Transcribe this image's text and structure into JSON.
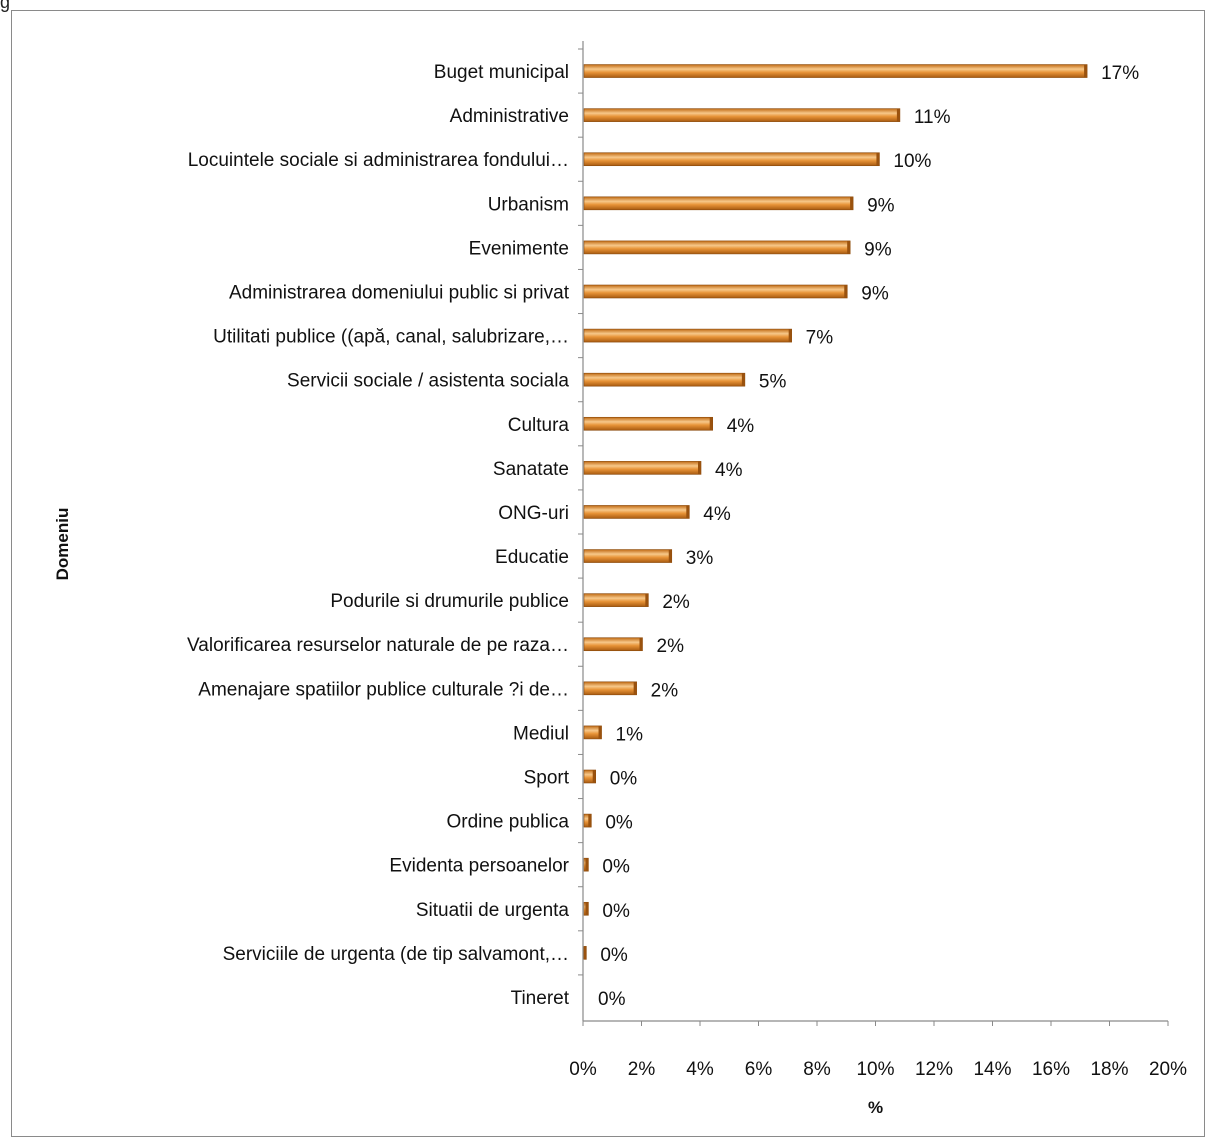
{
  "top_fragment": "g",
  "chart_data": {
    "type": "bar",
    "orientation": "horizontal",
    "title": "",
    "ylabel": "Domeniu",
    "xlabel": "%",
    "xlim": [
      0,
      20
    ],
    "x_ticks": [
      "0%",
      "2%",
      "4%",
      "6%",
      "8%",
      "10%",
      "12%",
      "14%",
      "16%",
      "18%",
      "20%"
    ],
    "grid": false,
    "legend": "none",
    "bar_color": "#e08a25",
    "bar_highlight": "#f7c88a",
    "categories": [
      "Buget municipal",
      "Administrative",
      "Locuintele sociale si administrarea fondului…",
      "Urbanism",
      "Evenimente",
      "Administrarea domeniului public si privat",
      "Utilitati publice ((apă, canal, salubrizare,…",
      "Servicii sociale / asistenta sociala",
      "Cultura",
      "Sanatate",
      "ONG-uri",
      "Educatie",
      "Podurile si drumurile publice",
      "Valorificarea resurselor naturale de pe raza…",
      "Amenajare spatiilor publice culturale ?i de…",
      "Mediul",
      "Sport",
      "Ordine publica",
      "Evidenta persoanelor",
      "Situatii de urgenta",
      "Serviciile de urgenta (de tip salvamont,…",
      "Tineret"
    ],
    "values": [
      17.2,
      10.8,
      10.1,
      9.2,
      9.1,
      9.0,
      7.1,
      5.5,
      4.4,
      4.0,
      3.6,
      3.0,
      2.2,
      2.0,
      1.8,
      0.6,
      0.4,
      0.25,
      0.15,
      0.15,
      0.08,
      0.0
    ],
    "value_labels": [
      "17%",
      "11%",
      "10%",
      "9%",
      "9%",
      "9%",
      "7%",
      "5%",
      "4%",
      "4%",
      "4%",
      "3%",
      "2%",
      "2%",
      "2%",
      "1%",
      "0%",
      "0%",
      "0%",
      "0%",
      "0%",
      "0%"
    ]
  }
}
